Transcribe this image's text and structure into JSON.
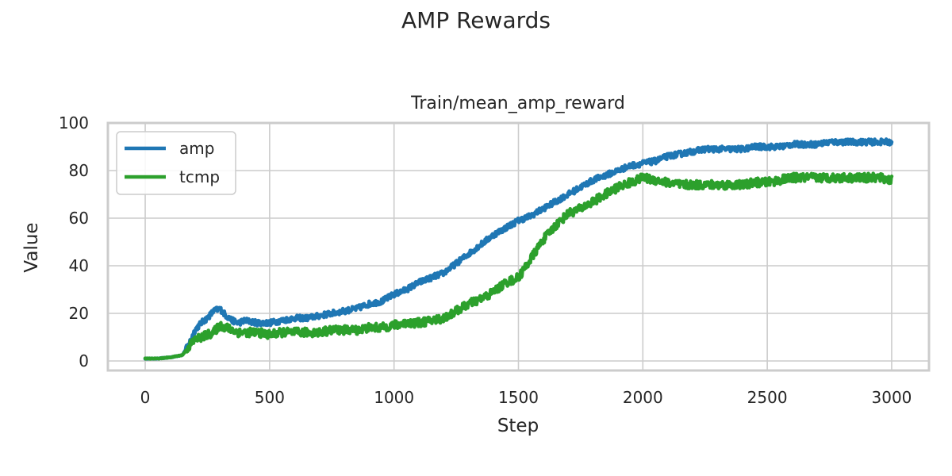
{
  "chart_data": {
    "type": "line",
    "suptitle": "AMP Rewards",
    "title": "Train/mean_amp_reward",
    "xlabel": "Step",
    "ylabel": "Value",
    "xlim": [
      -150,
      3150
    ],
    "ylim": [
      -4,
      100
    ],
    "xticks": [
      0,
      500,
      1000,
      1500,
      2000,
      2500,
      3000
    ],
    "yticks": [
      0,
      20,
      40,
      60,
      80,
      100
    ],
    "grid": true,
    "legend": "upper-left",
    "series": [
      {
        "name": "amp",
        "color": "#1f77b4",
        "x": [
          0,
          50,
          100,
          150,
          175,
          200,
          225,
          250,
          275,
          300,
          325,
          350,
          375,
          400,
          450,
          500,
          550,
          600,
          650,
          700,
          750,
          800,
          850,
          900,
          950,
          1000,
          1050,
          1100,
          1150,
          1200,
          1250,
          1300,
          1350,
          1400,
          1450,
          1500,
          1550,
          1600,
          1650,
          1700,
          1750,
          1800,
          1850,
          1900,
          1950,
          2000,
          2050,
          2100,
          2150,
          2200,
          2250,
          2300,
          2350,
          2400,
          2450,
          2500,
          2550,
          2600,
          2650,
          2700,
          2750,
          2800,
          2850,
          2900,
          2950,
          3000
        ],
        "y": [
          1,
          1,
          1.5,
          2.5,
          7,
          13,
          16,
          18,
          21,
          22,
          19,
          17,
          16,
          17,
          16,
          16,
          17,
          18,
          18,
          19,
          20,
          21,
          22,
          24,
          25,
          28,
          30,
          33,
          35,
          37,
          41,
          45,
          49,
          53,
          56,
          59,
          61,
          64,
          67,
          70,
          73,
          76,
          78,
          80,
          82,
          83,
          84,
          86,
          87,
          88,
          89,
          89,
          89,
          89,
          90,
          90,
          90,
          91,
          91,
          91,
          92,
          92,
          92,
          92,
          92,
          92
        ],
        "noise": 1.2
      },
      {
        "name": "tcmp",
        "color": "#2ca02c",
        "x": [
          0,
          50,
          100,
          150,
          175,
          200,
          225,
          250,
          275,
          300,
          325,
          350,
          375,
          400,
          450,
          500,
          550,
          600,
          650,
          700,
          750,
          800,
          850,
          900,
          950,
          1000,
          1050,
          1100,
          1150,
          1200,
          1250,
          1300,
          1350,
          1400,
          1450,
          1500,
          1550,
          1600,
          1650,
          1700,
          1750,
          1800,
          1850,
          1900,
          1950,
          2000,
          2050,
          2100,
          2150,
          2200,
          2250,
          2300,
          2350,
          2400,
          2450,
          2500,
          2550,
          2600,
          2650,
          2700,
          2750,
          2800,
          2850,
          2900,
          2950,
          3000
        ],
        "y": [
          1,
          1,
          1.5,
          2.5,
          6,
          9,
          10,
          11,
          12,
          15,
          14,
          13,
          12,
          12,
          12,
          11,
          12,
          12,
          12,
          12,
          13,
          13,
          13,
          14,
          14,
          15,
          16,
          16,
          17,
          18,
          21,
          24,
          26,
          29,
          33,
          35,
          43,
          51,
          57,
          62,
          64,
          67,
          70,
          73,
          75,
          77,
          76,
          75,
          74,
          74,
          74,
          74,
          74,
          74,
          75,
          75,
          76,
          77,
          77,
          77,
          77,
          77,
          77,
          77,
          77,
          76
        ],
        "noise": 1.8
      }
    ]
  }
}
